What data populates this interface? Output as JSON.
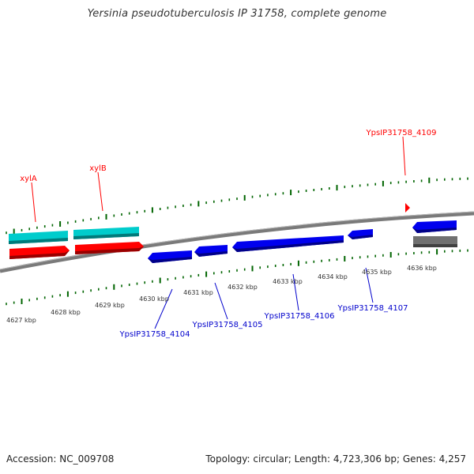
{
  "title": "Yersinia pseudotuberculosis IP 31758, complete genome",
  "footer": {
    "accession": "Accession: NC_009708",
    "topology": "Topology: circular; Length: 4,723,306 bp; Genes: 4,257"
  },
  "colors": {
    "forward_gene": "#ff0000",
    "reverse_gene": "#0000ee",
    "cds": "#00cccc",
    "other_feature": "#707070",
    "tick": "#006400",
    "backbone": "#808080"
  },
  "scale_labels": [
    "4627 kbp",
    "4628 kbp",
    "4629 kbp",
    "4630 kbp",
    "4631 kbp",
    "4632 kbp",
    "4633 kbp",
    "4634 kbp",
    "4635 kbp",
    "4636 kbp"
  ],
  "genes_forward": [
    {
      "label": "xylA",
      "strand": "+"
    },
    {
      "label": "xylB",
      "strand": "+"
    },
    {
      "label": "YpsIP31758_4109",
      "strand": "+"
    }
  ],
  "genes_reverse": [
    {
      "label": "YpsIP31758_4104",
      "strand": "-"
    },
    {
      "label": "YpsIP31758_4105",
      "strand": "-"
    },
    {
      "label": "YpsIP31758_4106",
      "strand": "-"
    },
    {
      "label": "YpsIP31758_4107",
      "strand": "-"
    }
  ]
}
